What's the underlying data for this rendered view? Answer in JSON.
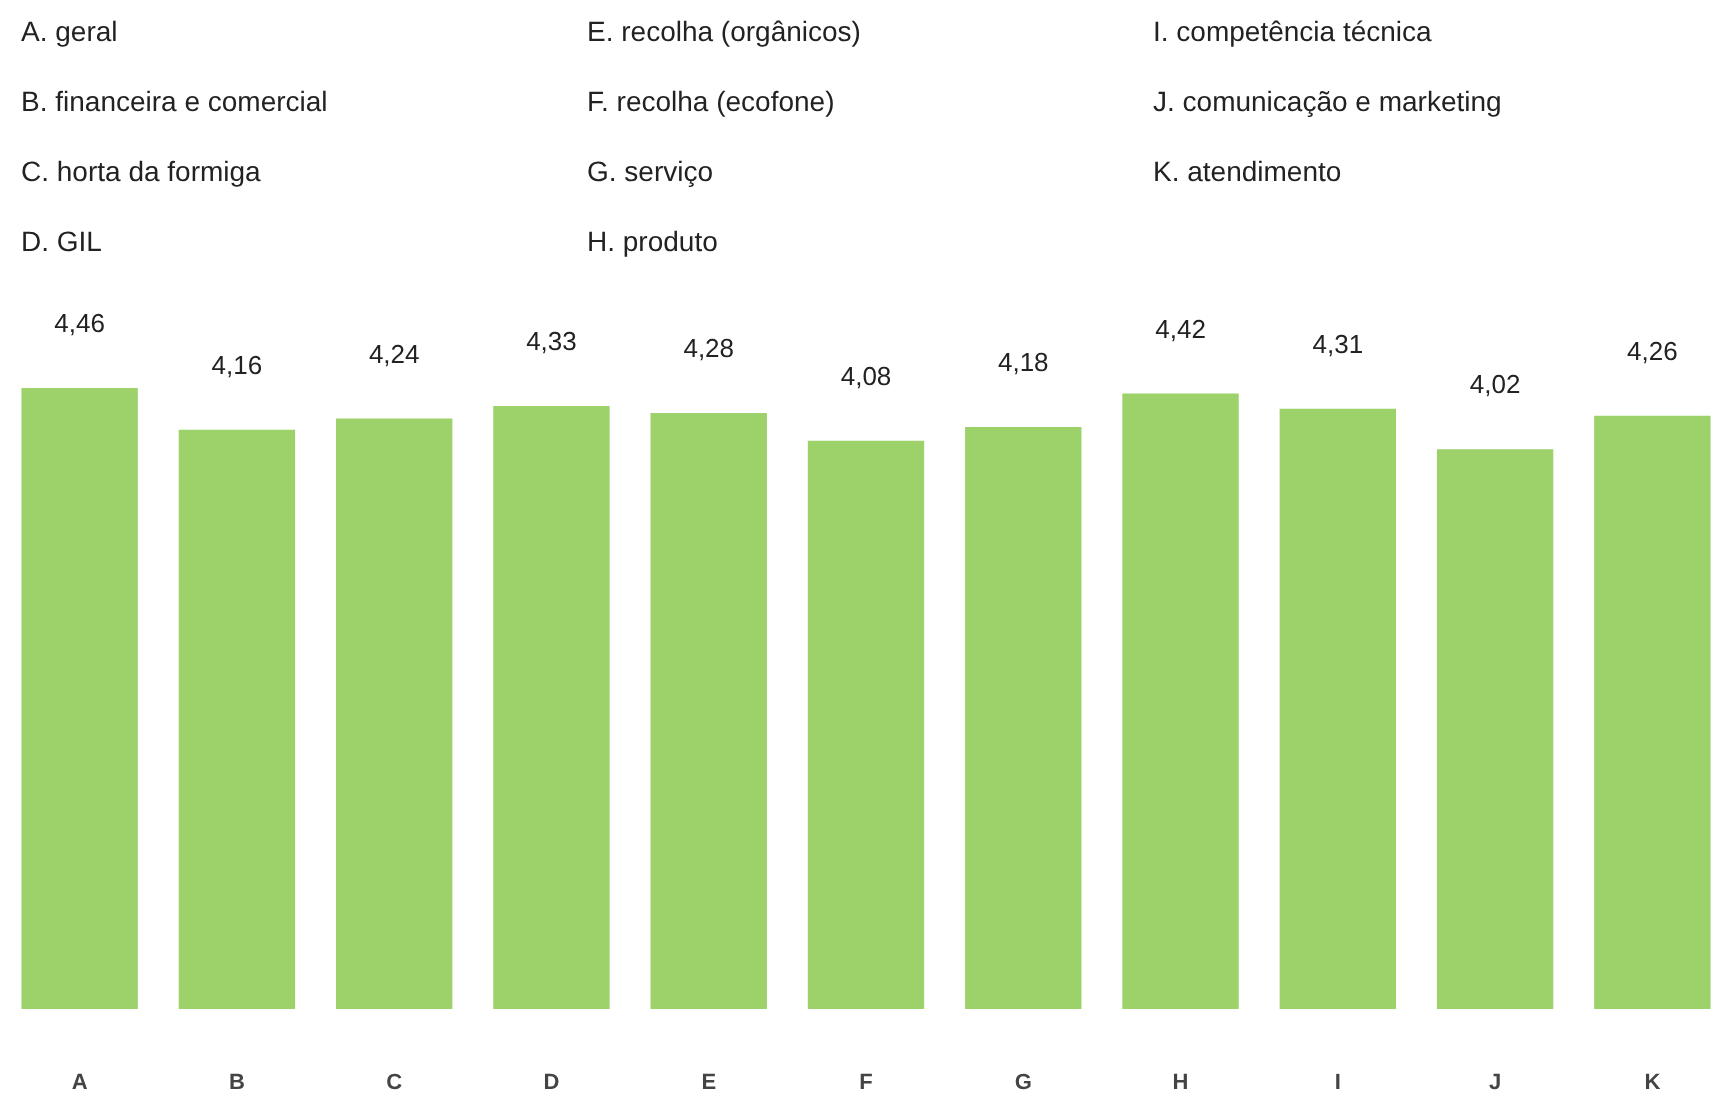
{
  "chart_data": {
    "type": "bar",
    "annotations": [
      "A. geral",
      "B. financeira e comercial",
      "C. horta da formiga",
      "D. GIL",
      "E. recolha (orgânicos)",
      "F. recolha (ecofone)",
      "G. serviço",
      "H. produto",
      "I. competência técnica",
      "J. comunicação e marketing",
      "K. atendimento"
    ],
    "categories": [
      "A",
      "B",
      "C",
      "D",
      "E",
      "F",
      "G",
      "H",
      "I",
      "J",
      "K"
    ],
    "values": [
      4.46,
      4.16,
      4.24,
      4.33,
      4.28,
      4.08,
      4.18,
      4.42,
      4.31,
      4.02,
      4.26
    ],
    "color": "#9dd16a",
    "value_labels": [
      "4,46",
      "4,16",
      "4,24",
      "4,33",
      "4,28",
      "4,08",
      "4,18",
      "4,42",
      "4,31",
      "4,02",
      "4,26"
    ],
    "tick_labels": "x"
  }
}
